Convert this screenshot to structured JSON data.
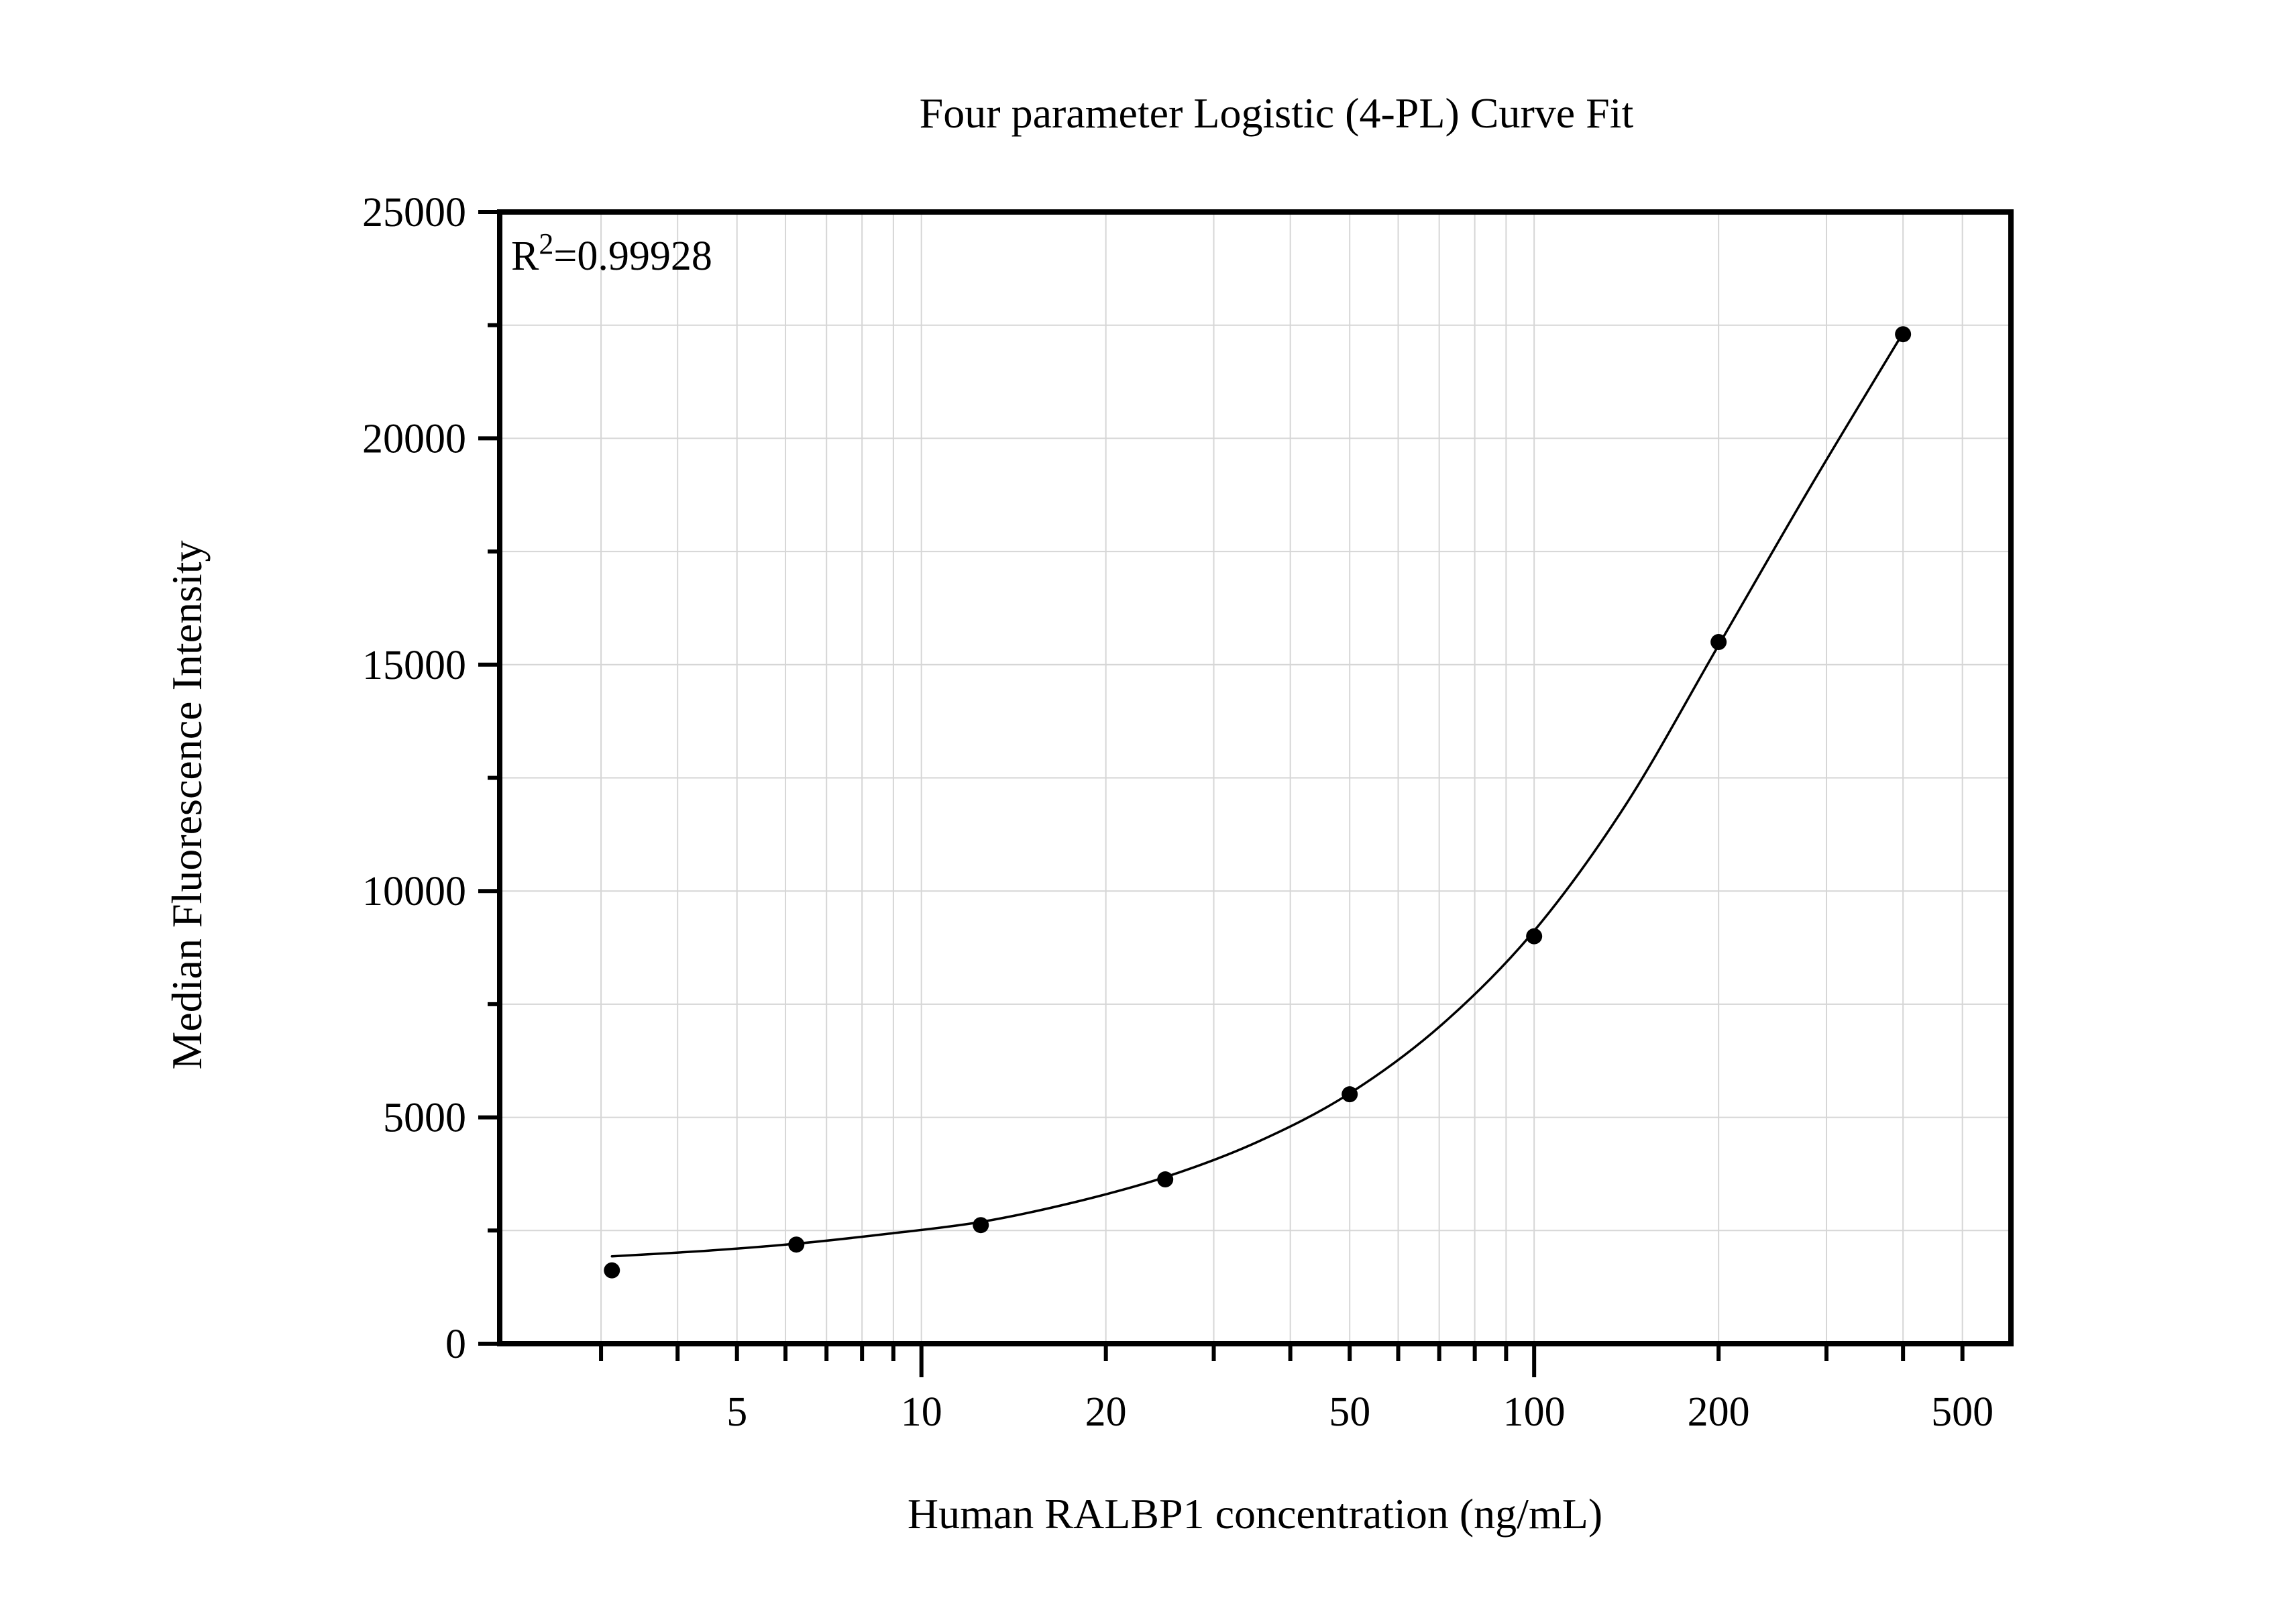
{
  "chart_data": {
    "type": "scatter",
    "x_scale": "log",
    "title": "Four parameter Logistic (4-PL) Curve Fit",
    "xlabel": "Human RALBP1 concentration (ng/mL)",
    "ylabel": "Median Fluorescence Intensity",
    "annotation": {
      "text": "R²=0.99928",
      "base": "R",
      "sup": "2",
      "rest": "=0.99928"
    },
    "series": [
      {
        "name": "standard-points",
        "x": [
          3.125,
          6.25,
          12.5,
          25,
          50,
          100,
          200,
          400
        ],
        "y": [
          1620,
          2190,
          2620,
          3630,
          5510,
          9000,
          15500,
          22300
        ]
      }
    ],
    "fit_curve": {
      "model": "4PL",
      "r_squared": 0.99928,
      "sample_x": [
        3.125,
        4.42,
        6.25,
        8.84,
        12.5,
        17.7,
        25,
        35.4,
        50,
        70.7,
        100,
        141,
        200,
        283,
        400
      ],
      "sample_y": [
        1930,
        2050,
        2210,
        2430,
        2690,
        3120,
        3680,
        4460,
        5530,
        7050,
        9120,
        11900,
        15430,
        18950,
        22330
      ]
    },
    "xlim": [
      2.05,
      600
    ],
    "ylim": [
      0,
      25000
    ],
    "x_ticks_labeled": {
      "values": [
        5,
        10,
        20,
        50,
        100,
        200,
        500
      ],
      "labels": [
        "5",
        "10",
        "20",
        "50",
        "100",
        "200",
        "500"
      ]
    },
    "x_ticks_major": [
      10,
      100
    ],
    "x_ticks_minor": [
      3,
      4,
      5,
      6,
      7,
      8,
      9,
      10,
      20,
      30,
      40,
      50,
      60,
      70,
      80,
      90,
      100,
      200,
      300,
      400,
      500
    ],
    "y_ticks_major": [
      0,
      5000,
      10000,
      15000,
      20000,
      25000
    ],
    "y_ticks_minor_step": 2500,
    "grid": {
      "show": true,
      "color": "#d6d6d6"
    },
    "colors": {
      "marker": "#000000",
      "curve": "#000000",
      "axis": "#000000",
      "text": "#000000",
      "background": "#ffffff"
    }
  }
}
